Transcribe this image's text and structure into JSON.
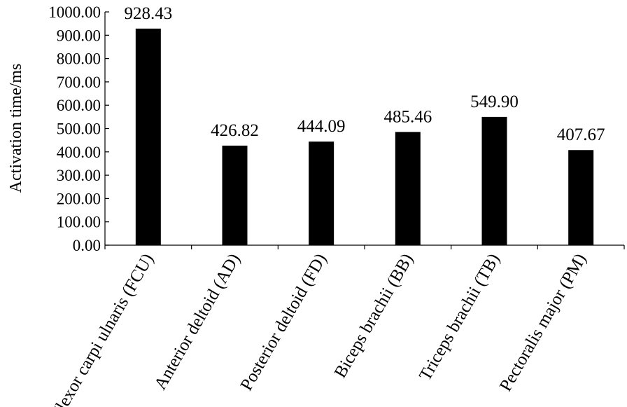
{
  "chart_data": {
    "type": "bar",
    "title": "",
    "xlabel": "",
    "ylabel": "Activation time/ms",
    "ylim": [
      0,
      1000
    ],
    "yticks": [
      "0.00",
      "100.00",
      "200.00",
      "300.00",
      "400.00",
      "500.00",
      "600.00",
      "700.00",
      "800.00",
      "900.00",
      "1000.00"
    ],
    "categories": [
      "Flexor carpi ulnaris (FCU)",
      "Anterior deltoid (AD)",
      "Posterior deltoid (FD)",
      "Biceps brachii (BB)",
      "Triceps brachii (TB)",
      "Pectoralis major (PM)"
    ],
    "values": [
      928.43,
      426.82,
      444.09,
      485.46,
      549.9,
      407.67
    ],
    "data_labels": [
      "928.43",
      "426.82",
      "444.09",
      "485.46",
      "549.90",
      "407.67"
    ],
    "bar_color": "#000000",
    "grid": false
  }
}
